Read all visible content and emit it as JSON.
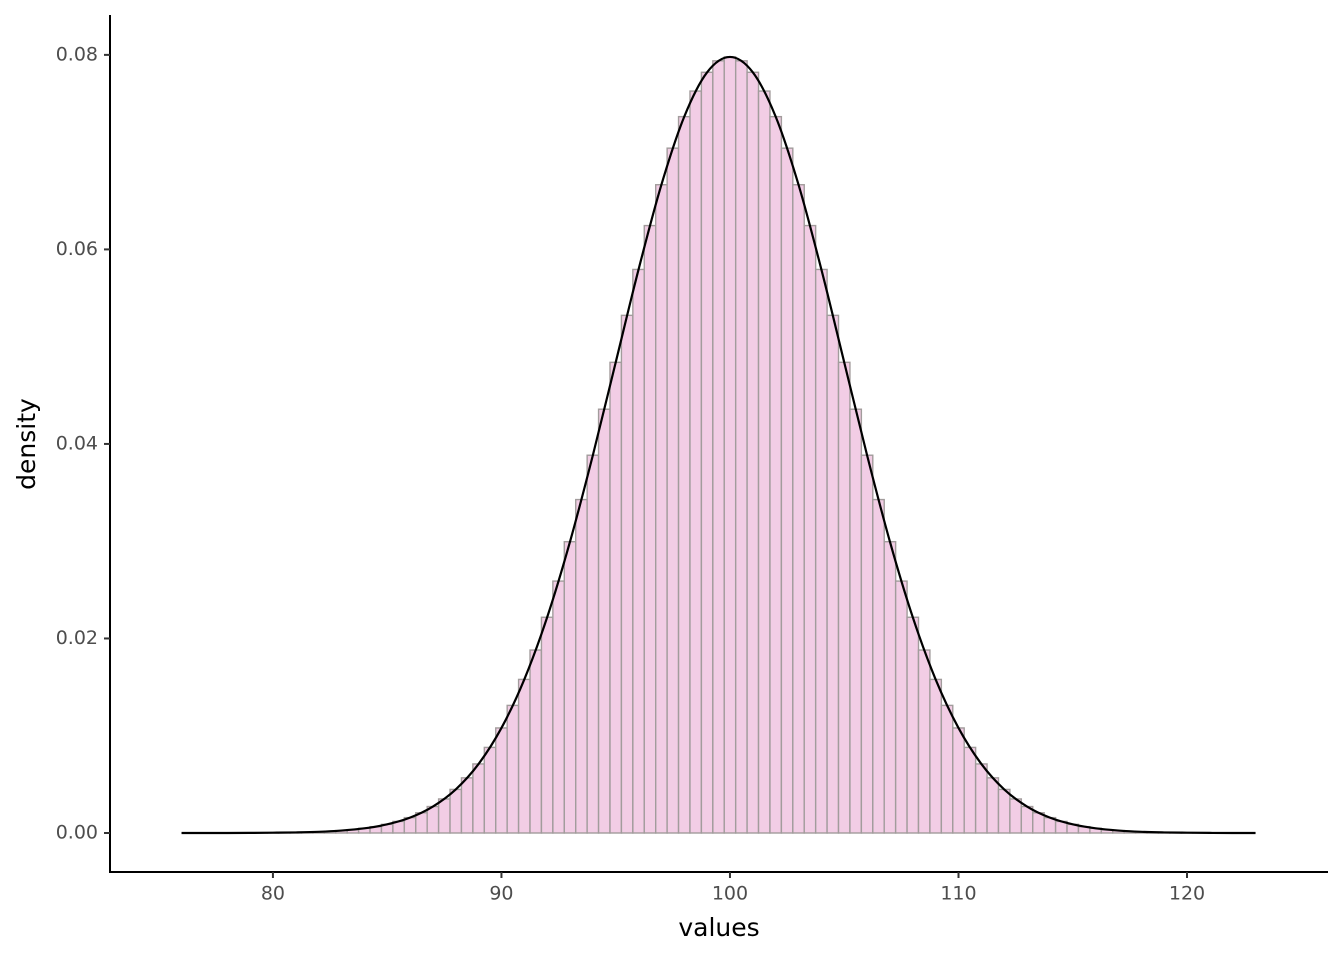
{
  "chart_data": {
    "type": "histogram",
    "x_label": "values",
    "y_label": "density",
    "bins": [
      75.25,
      75.75,
      76.25,
      76.75,
      77.25,
      77.75,
      78.25,
      78.75,
      79.25,
      79.75,
      80.25,
      80.75,
      81.25,
      81.75,
      82.25,
      82.75,
      83.25,
      83.75,
      84.25,
      84.75,
      85.25,
      85.75,
      86.25,
      86.75,
      87.25,
      87.75,
      88.25,
      88.75,
      89.25,
      89.75,
      90.25,
      90.75,
      91.25,
      91.75,
      92.25,
      92.75,
      93.25,
      93.75,
      94.25,
      94.75,
      95.25,
      95.75,
      96.25,
      96.75,
      97.25,
      97.75,
      98.25,
      98.75,
      99.25,
      99.75,
      100.25,
      100.75,
      101.25,
      101.75,
      102.25,
      102.75,
      103.25,
      103.75,
      104.25,
      104.75,
      105.25,
      105.75,
      106.25,
      106.75,
      107.25,
      107.75,
      108.25,
      108.75,
      109.25,
      109.75,
      110.25,
      110.75,
      111.25,
      111.75,
      112.25,
      112.75,
      113.25,
      113.75,
      114.25,
      114.75,
      115.25,
      115.75,
      116.25,
      116.75,
      117.25,
      117.75,
      118.25,
      118.75,
      119.25,
      119.75,
      120.25,
      120.75,
      121.25,
      121.75,
      122.25,
      122.75,
      123.25,
      123.75
    ],
    "values": [
      0,
      0,
      0,
      0,
      0,
      0,
      1e-05,
      1e-05,
      2e-05,
      3e-05,
      4e-05,
      6e-05,
      8e-05,
      0.00012,
      0.00017,
      0.00025,
      0.00034,
      0.00048,
      0.00065,
      0.00089,
      0.00119,
      0.00158,
      0.00208,
      0.00272,
      0.0035,
      0.00448,
      0.00567,
      0.0071,
      0.0088,
      0.0108,
      0.01312,
      0.01579,
      0.01881,
      0.02218,
      0.0259,
      0.02995,
      0.03428,
      0.03884,
      0.04357,
      0.04839,
      0.05322,
      0.05794,
      0.06245,
      0.06665,
      0.07041,
      0.07365,
      0.07628,
      0.07821,
      0.07939,
      0.07979,
      0.07939,
      0.07821,
      0.07628,
      0.07365,
      0.07041,
      0.06665,
      0.06245,
      0.05794,
      0.05322,
      0.04839,
      0.04357,
      0.03884,
      0.03428,
      0.02995,
      0.0259,
      0.02218,
      0.01881,
      0.01579,
      0.01312,
      0.0108,
      0.0088,
      0.0071,
      0.00567,
      0.00448,
      0.0035,
      0.00272,
      0.00208,
      0.00158,
      0.00119,
      0.00089,
      0.00065,
      0.00048,
      0.00034,
      0.00025,
      0.00017,
      0.00012,
      8e-05,
      6e-05,
      4e-05,
      3e-05,
      2e-05,
      1e-05,
      1e-05,
      0,
      0,
      0,
      0
    ],
    "color": "#f2cde5",
    "edge_color": "#a29c9c",
    "density": {
      "color": "#000000",
      "x": [
        76,
        77,
        78,
        79,
        80,
        81,
        82,
        83,
        84,
        85,
        86,
        87,
        88,
        89,
        90,
        91,
        92,
        93,
        94,
        95,
        96,
        97,
        98,
        99,
        100,
        101,
        102,
        103,
        104,
        105,
        106,
        107,
        108,
        109,
        110,
        111,
        112,
        113,
        114,
        115,
        116,
        117,
        118,
        119,
        120,
        121,
        122,
        123
      ],
      "values": [
        0,
        0,
        0,
        1e-05,
        3e-05,
        6e-05,
        0.00012,
        0.00025,
        0.00048,
        0.00089,
        0.00158,
        0.00272,
        0.00448,
        0.0071,
        0.0108,
        0.01579,
        0.02218,
        0.02995,
        0.03884,
        0.04839,
        0.05794,
        0.06665,
        0.07365,
        0.07821,
        0.07979,
        0.07821,
        0.07365,
        0.06665,
        0.05794,
        0.04839,
        0.03884,
        0.02995,
        0.02218,
        0.01579,
        0.0108,
        0.0071,
        0.00448,
        0.00272,
        0.00158,
        0.00089,
        0.00048,
        0.00025,
        0.00012,
        6e-05,
        3e-05,
        1e-05,
        0,
        0
      ]
    },
    "xlim": [
      72.87,
      126.17
    ],
    "xticks": [
      80,
      90,
      100,
      110,
      120
    ],
    "ylim": [
      -0.00401,
      0.0841
    ],
    "yticks": [
      {
        "value": 0,
        "label": "0.00"
      },
      0.02,
      0.04,
      0.06,
      0.08
    ]
  }
}
